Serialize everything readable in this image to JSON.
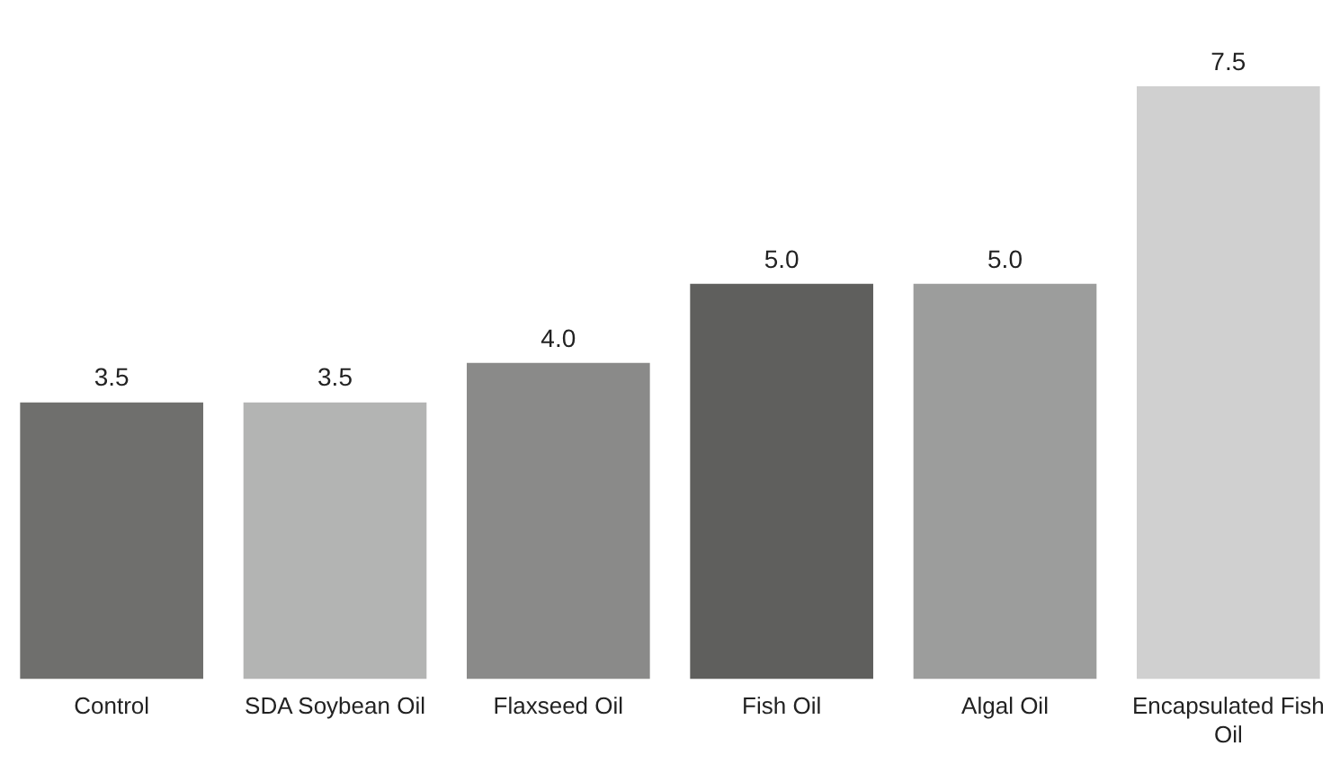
{
  "chart_data": {
    "type": "bar",
    "categories": [
      "Control",
      "SDA Soybean Oil",
      "Flaxseed Oil",
      "Fish Oil",
      "Algal Oil",
      "Encapsulated Fish Oil"
    ],
    "values": [
      3.5,
      3.5,
      4.0,
      5.0,
      5.0,
      7.5
    ],
    "colors": [
      "#6f6f6d",
      "#b3b4b3",
      "#8a8a89",
      "#5f5f5d",
      "#9c9d9c",
      "#d0d0d0"
    ],
    "value_labels": [
      "3.5",
      "3.5",
      "4.0",
      "5.0",
      "5.0",
      "7.5"
    ],
    "grid": false,
    "legend": false
  }
}
